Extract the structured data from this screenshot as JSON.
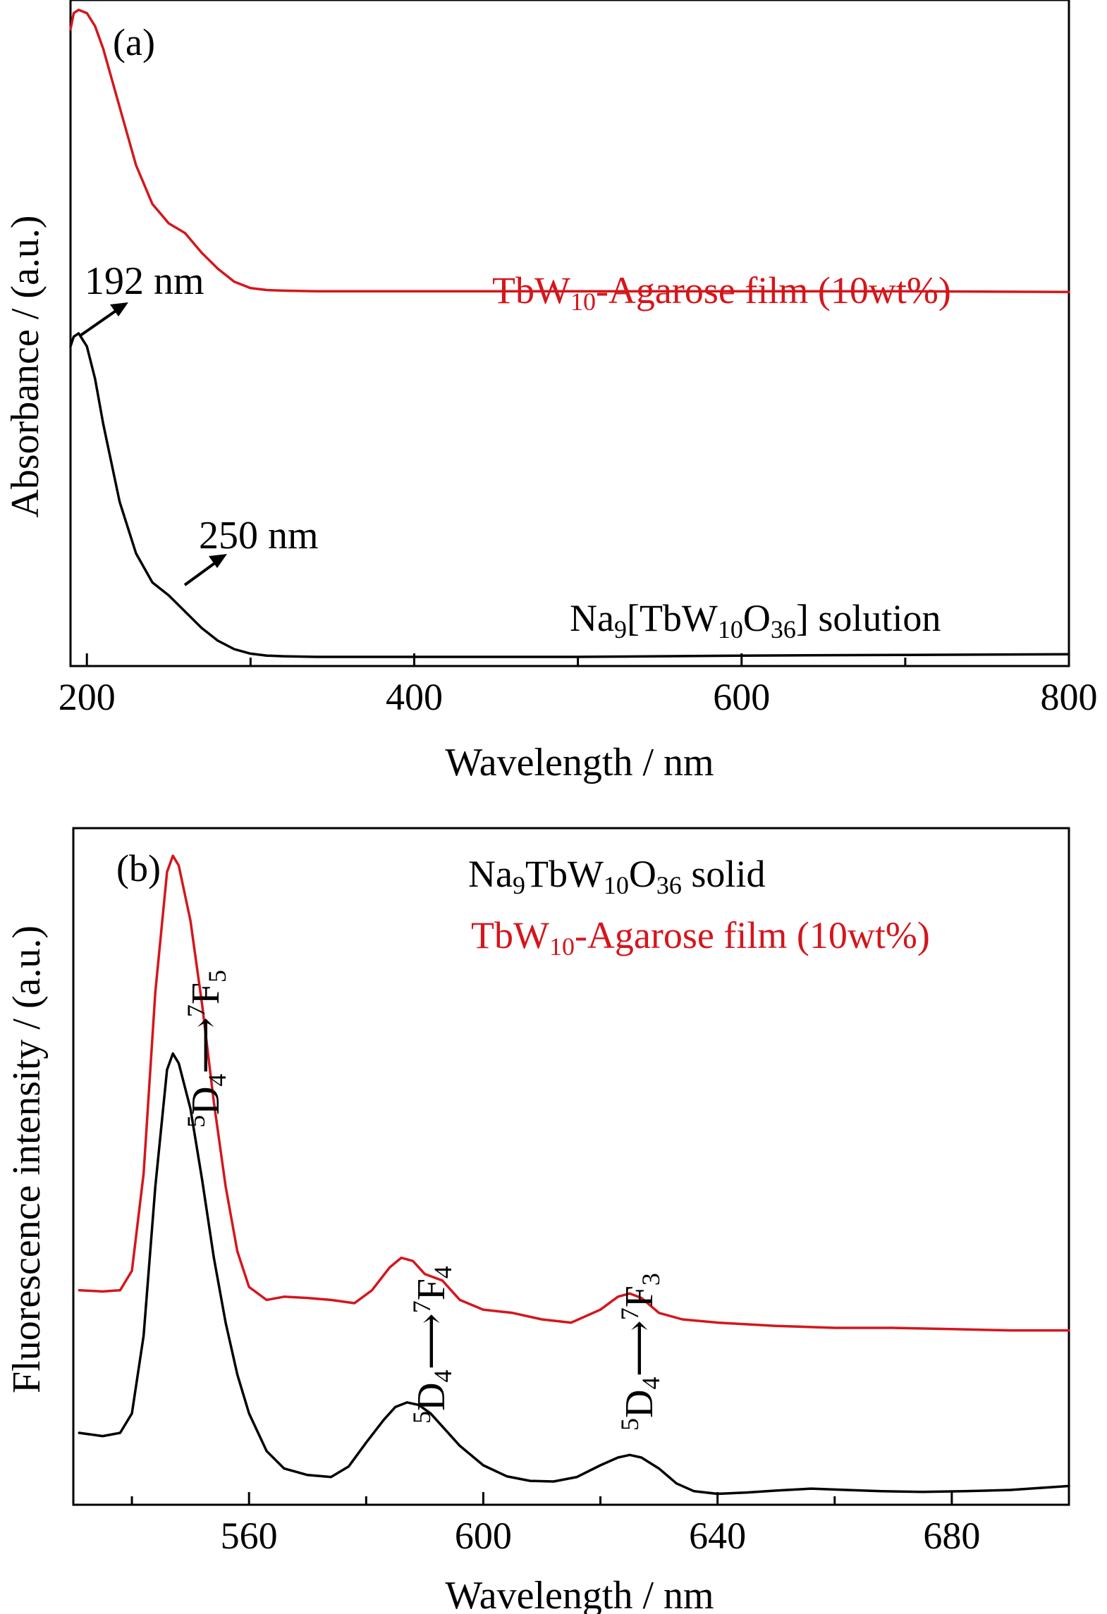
{
  "chart_data": [
    {
      "type": "line",
      "panel_label": "(a)",
      "xlabel": "Wavelength / nm",
      "ylabel": "Absorbance / (a.u.)",
      "xlim": [
        190,
        800
      ],
      "ylim": [
        0,
        1
      ],
      "x_ticks": [
        200,
        400,
        600,
        800
      ],
      "x_tick_labels": [
        "200",
        "400",
        "600",
        "800"
      ],
      "y_ticks_visible": false,
      "grid": false,
      "series": [
        {
          "name": "TbW10-Agarose film (10wt%)",
          "label_main": "TbW",
          "label_sub": "10",
          "label_rest": "-Agarose film (10wt%)",
          "color": "#d4161c",
          "x": [
            190,
            192,
            195,
            200,
            205,
            210,
            220,
            230,
            240,
            250,
            260,
            270,
            280,
            290,
            300,
            310,
            320,
            340,
            400,
            500,
            600,
            700,
            800
          ],
          "y": [
            0.97,
            0.995,
            1.0,
            0.995,
            0.975,
            0.94,
            0.85,
            0.76,
            0.7,
            0.67,
            0.655,
            0.625,
            0.6,
            0.58,
            0.57,
            0.567,
            0.566,
            0.565,
            0.565,
            0.565,
            0.565,
            0.565,
            0.564
          ]
        },
        {
          "name": "Na9[TbW10O36] solution",
          "label_parts": [
            {
              "t": "Na",
              "s": ""
            },
            {
              "t": "9",
              "s": "sub"
            },
            {
              "t": "[TbW",
              "s": ""
            },
            {
              "t": "10",
              "s": "sub"
            },
            {
              "t": "O",
              "s": ""
            },
            {
              "t": "36",
              "s": "sub"
            },
            {
              "t": "] solution",
              "s": ""
            }
          ],
          "color": "#000000",
          "x": [
            190,
            192,
            195,
            200,
            205,
            210,
            220,
            230,
            240,
            250,
            260,
            270,
            280,
            290,
            300,
            310,
            320,
            340,
            400,
            500,
            600,
            700,
            800
          ],
          "y": [
            0.48,
            0.495,
            0.5,
            0.48,
            0.43,
            0.36,
            0.24,
            0.16,
            0.115,
            0.095,
            0.07,
            0.045,
            0.025,
            0.012,
            0.005,
            0.002,
            0.001,
            0.0,
            0.0,
            0.0,
            0.002,
            0.003,
            0.004
          ]
        }
      ],
      "annotations": [
        {
          "text": "192 nm",
          "x": 192
        },
        {
          "text": "250 nm",
          "x": 250
        }
      ]
    },
    {
      "type": "line",
      "panel_label": "(b)",
      "xlabel": "Wavelength / nm",
      "ylabel": "Fluorescence intensity / (a.u.)",
      "xlim": [
        530,
        700
      ],
      "ylim": [
        0,
        1
      ],
      "x_ticks": [
        540,
        560,
        580,
        600,
        620,
        640,
        660,
        680,
        700
      ],
      "x_tick_labels": [
        "560",
        "600",
        "640",
        "680"
      ],
      "x_labeled_ticks": [
        560,
        600,
        640,
        680
      ],
      "y_ticks_visible": false,
      "grid": false,
      "series": [
        {
          "name": "Na9TbW10O36 solid",
          "label_parts": [
            {
              "t": "Na",
              "s": ""
            },
            {
              "t": "9",
              "s": "sub"
            },
            {
              "t": "TbW",
              "s": ""
            },
            {
              "t": "10",
              "s": "sub"
            },
            {
              "t": "O",
              "s": ""
            },
            {
              "t": "36",
              "s": "sub"
            },
            {
              "t": " solid",
              "s": ""
            }
          ],
          "color": "#000000",
          "x": [
            531,
            535,
            538,
            540,
            542,
            544,
            546,
            547,
            548,
            550,
            552,
            554,
            556,
            558,
            560,
            563,
            566,
            570,
            574,
            577,
            580,
            583,
            585,
            587,
            589,
            591,
            593,
            596,
            600,
            604,
            608,
            612,
            616,
            620,
            623,
            625,
            627,
            630,
            633,
            636,
            640,
            645,
            650,
            656,
            662,
            668,
            675,
            682,
            690,
            700
          ],
          "y": [
            0.1,
            0.095,
            0.1,
            0.13,
            0.25,
            0.48,
            0.66,
            0.685,
            0.67,
            0.6,
            0.49,
            0.37,
            0.27,
            0.19,
            0.13,
            0.072,
            0.045,
            0.035,
            0.032,
            0.048,
            0.085,
            0.12,
            0.14,
            0.147,
            0.143,
            0.13,
            0.11,
            0.08,
            0.05,
            0.033,
            0.026,
            0.025,
            0.032,
            0.05,
            0.062,
            0.066,
            0.062,
            0.045,
            0.022,
            0.01,
            0.006,
            0.008,
            0.011,
            0.014,
            0.012,
            0.01,
            0.009,
            0.01,
            0.012,
            0.018
          ]
        },
        {
          "name": "TbW10-Agarose film (10wt%)",
          "label_main": "TbW",
          "label_sub": "10",
          "label_rest": "-Agarose film (10wt%)",
          "color": "#d4161c",
          "x": [
            531,
            535,
            538,
            540,
            542,
            544,
            546,
            547,
            548,
            550,
            552,
            554,
            556,
            558,
            560,
            563,
            566,
            570,
            574,
            578,
            581,
            584,
            586,
            588,
            590,
            593,
            596,
            600,
            605,
            610,
            615,
            620,
            623,
            625,
            627,
            630,
            634,
            640,
            650,
            660,
            670,
            680,
            690,
            700
          ],
          "y": [
            0.32,
            0.318,
            0.32,
            0.35,
            0.5,
            0.78,
            0.965,
            0.99,
            0.975,
            0.89,
            0.76,
            0.61,
            0.48,
            0.38,
            0.325,
            0.305,
            0.31,
            0.308,
            0.305,
            0.3,
            0.32,
            0.355,
            0.37,
            0.365,
            0.345,
            0.335,
            0.305,
            0.29,
            0.285,
            0.275,
            0.27,
            0.29,
            0.31,
            0.315,
            0.308,
            0.285,
            0.275,
            0.27,
            0.265,
            0.262,
            0.262,
            0.26,
            0.258,
            0.258
          ]
        }
      ],
      "annotations": [
        {
          "text": "5D4→7F5",
          "x": 546
        },
        {
          "text": "5D4→7F4",
          "x": 587
        },
        {
          "text": "5D4→7F3",
          "x": 625
        }
      ]
    }
  ]
}
